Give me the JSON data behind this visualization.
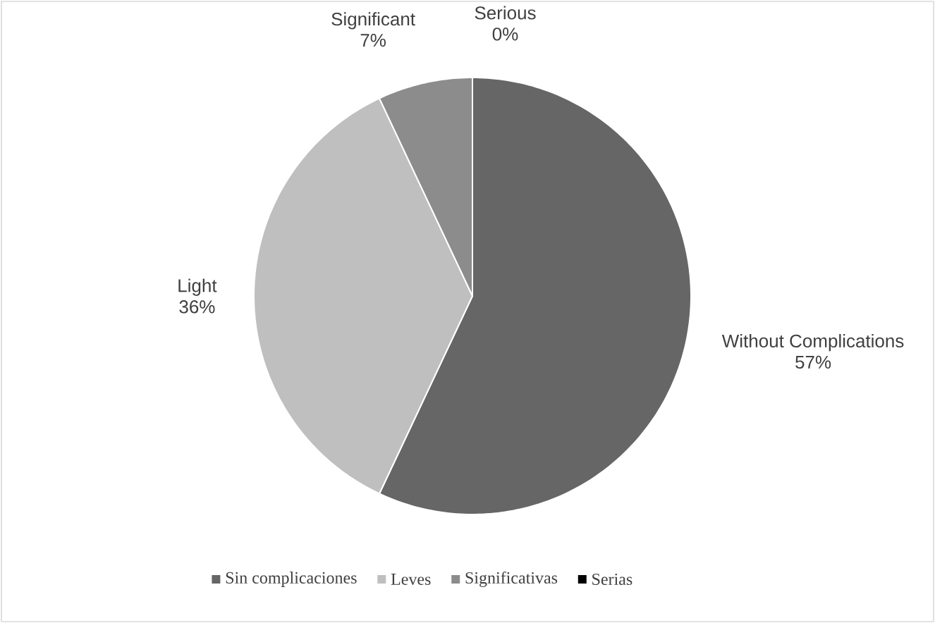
{
  "chart_data": {
    "type": "pie",
    "categories": [
      "Sin complicaciones",
      "Leves",
      "Significativas",
      "Serias"
    ],
    "values": [
      57,
      36,
      7,
      0
    ],
    "colors": [
      "#666666",
      "#bfbfbf",
      "#8c8c8c",
      "#000000"
    ],
    "value_labels": [
      "57%",
      "36%",
      "7%",
      "0%"
    ],
    "annotations": [
      "Without Complications",
      "Light",
      "Significant",
      "Serious"
    ],
    "legend": "bottom"
  }
}
